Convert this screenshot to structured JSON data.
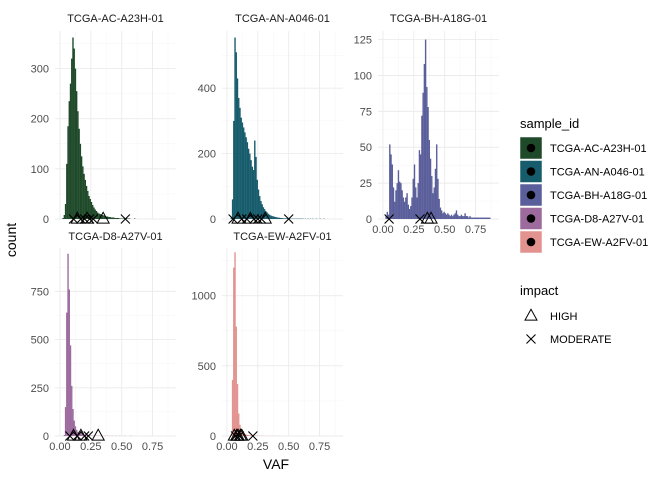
{
  "chart_data": {
    "type": "histogram",
    "facet_layout": "3 columns, free y scales",
    "xlabel": "VAF",
    "ylabel": "count",
    "x_ticks": [
      0.0,
      0.25,
      0.5,
      0.75
    ],
    "x_tick_labels": [
      "0.00",
      "0.25",
      "0.50",
      "0.75"
    ],
    "xlim": [
      -0.04,
      0.94
    ],
    "grid": true,
    "legend_position": "right",
    "legends": [
      {
        "title": "sample_id",
        "entries": [
          {
            "label": "TCGA-AC-A23H-01",
            "color": "#1f4a2a"
          },
          {
            "label": "TCGA-AN-A046-01",
            "color": "#175c6c"
          },
          {
            "label": "TCGA-BH-A18G-01",
            "color": "#5a5e9a"
          },
          {
            "label": "TCGA-D8-A27V-01",
            "color": "#9d6a9e"
          },
          {
            "label": "TCGA-EW-A2FV-01",
            "color": "#e3938f"
          }
        ]
      },
      {
        "title": "impact",
        "entries": [
          {
            "label": "HIGH",
            "shape": "triangle"
          },
          {
            "label": "MODERATE",
            "shape": "cross"
          }
        ]
      }
    ],
    "facets": [
      {
        "sample_id": "TCGA-AC-A23H-01",
        "color": "#1f4a2a",
        "y_ticks": [
          0,
          100,
          200,
          300
        ],
        "ylim": [
          0,
          375
        ],
        "histogram": {
          "bin_start": 0.0,
          "bin_width": 0.01,
          "counts": [
            0,
            0,
            2,
            8,
            30,
            110,
            185,
            235,
            270,
            320,
            362,
            340,
            300,
            255,
            215,
            180,
            150,
            125,
            105,
            90,
            78,
            66,
            56,
            46,
            40,
            34,
            28,
            23,
            19,
            16,
            13,
            11,
            10,
            9,
            8,
            7,
            6,
            5,
            5,
            4,
            4,
            3,
            3,
            3,
            2,
            2,
            2,
            2,
            1,
            1,
            1,
            1,
            1,
            1,
            1,
            1,
            1,
            0,
            0,
            0,
            1,
            0,
            0,
            0,
            0,
            0,
            0,
            0,
            0,
            0,
            0,
            0,
            0,
            0,
            0,
            0,
            0,
            0,
            0,
            0,
            0,
            0,
            0,
            0,
            0,
            0,
            0,
            0,
            0,
            0
          ]
        },
        "variants": [
          {
            "vaf": 0.11,
            "impact": "MODERATE"
          },
          {
            "vaf": 0.14,
            "impact": "HIGH"
          },
          {
            "vaf": 0.17,
            "impact": "MODERATE"
          },
          {
            "vaf": 0.2,
            "impact": "MODERATE"
          },
          {
            "vaf": 0.22,
            "impact": "HIGH"
          },
          {
            "vaf": 0.24,
            "impact": "MODERATE"
          },
          {
            "vaf": 0.27,
            "impact": "MODERATE"
          },
          {
            "vaf": 0.35,
            "impact": "HIGH"
          },
          {
            "vaf": 0.53,
            "impact": "MODERATE"
          }
        ]
      },
      {
        "sample_id": "TCGA-AN-A046-01",
        "color": "#175c6c",
        "y_ticks": [
          0,
          200,
          400
        ],
        "ylim": [
          0,
          575
        ],
        "histogram": {
          "bin_start": 0.0,
          "bin_width": 0.01,
          "counts": [
            0,
            0,
            0,
            5,
            60,
            300,
            555,
            510,
            430,
            370,
            340,
            310,
            295,
            280,
            265,
            250,
            235,
            215,
            200,
            180,
            160,
            150,
            240,
            190,
            120,
            90,
            70,
            55,
            45,
            36,
            30,
            24,
            20,
            16,
            13,
            11,
            9,
            8,
            7,
            6,
            5,
            4,
            4,
            3,
            3,
            2,
            2,
            2,
            2,
            1,
            1,
            1,
            1,
            1,
            1,
            1,
            1,
            1,
            1,
            1,
            1,
            1,
            0,
            1,
            0,
            1,
            0,
            1,
            0,
            1,
            0,
            0,
            1,
            0,
            0,
            1,
            0,
            0,
            1,
            0,
            0,
            0,
            0,
            0,
            0,
            0,
            0,
            0,
            0,
            0
          ]
        },
        "variants": [
          {
            "vaf": 0.05,
            "impact": "MODERATE"
          },
          {
            "vaf": 0.09,
            "impact": "HIGH"
          },
          {
            "vaf": 0.12,
            "impact": "MODERATE"
          },
          {
            "vaf": 0.16,
            "impact": "MODERATE"
          },
          {
            "vaf": 0.19,
            "impact": "HIGH"
          },
          {
            "vaf": 0.22,
            "impact": "MODERATE"
          },
          {
            "vaf": 0.25,
            "impact": "MODERATE"
          },
          {
            "vaf": 0.28,
            "impact": "MODERATE"
          },
          {
            "vaf": 0.31,
            "impact": "HIGH"
          },
          {
            "vaf": 0.5,
            "impact": "MODERATE"
          }
        ]
      },
      {
        "sample_id": "TCGA-BH-A18G-01",
        "color": "#5a5e9a",
        "y_ticks": [
          0,
          25,
          50,
          75,
          100,
          125
        ],
        "ylim": [
          0,
          131
        ],
        "histogram": {
          "bin_start": 0.0,
          "bin_width": 0.01,
          "counts": [
            0,
            0,
            2,
            5,
            3,
            52,
            45,
            38,
            22,
            12,
            20,
            25,
            34,
            26,
            25,
            20,
            15,
            12,
            15,
            18,
            10,
            7,
            9,
            15,
            28,
            38,
            22,
            15,
            25,
            48,
            45,
            72,
            88,
            108,
            125,
            92,
            78,
            55,
            42,
            30,
            18,
            22,
            35,
            52,
            28,
            14,
            8,
            6,
            4,
            5,
            4,
            3,
            4,
            3,
            2,
            3,
            2,
            3,
            4,
            6,
            3,
            2,
            2,
            3,
            2,
            2,
            4,
            2,
            2,
            1,
            2,
            1,
            1,
            1,
            1,
            1,
            1,
            1,
            1,
            1,
            1,
            1,
            1,
            1,
            1,
            1,
            1,
            0,
            0,
            0
          ]
        },
        "variants": [
          {
            "vaf": 0.05,
            "impact": "MODERATE"
          },
          {
            "vaf": 0.3,
            "impact": "MODERATE"
          },
          {
            "vaf": 0.36,
            "impact": "HIGH"
          },
          {
            "vaf": 0.39,
            "impact": "HIGH"
          }
        ]
      },
      {
        "sample_id": "TCGA-D8-A27V-01",
        "color": "#9d6a9e",
        "y_ticks": [
          0,
          250,
          500,
          750
        ],
        "ylim": [
          0,
          975
        ],
        "histogram": {
          "bin_start": 0.0,
          "bin_width": 0.01,
          "counts": [
            0,
            0,
            0,
            5,
            150,
            640,
            945,
            760,
            470,
            260,
            140,
            80,
            50,
            32,
            22,
            16,
            12,
            9,
            7,
            5,
            4,
            3,
            3,
            2,
            2,
            2,
            1,
            1,
            1,
            1,
            1,
            1,
            1,
            1,
            1,
            0,
            1,
            0,
            1,
            0,
            1,
            0,
            1,
            0,
            0,
            1,
            0,
            0,
            1,
            0,
            0,
            0,
            1,
            0,
            0,
            0,
            0,
            1,
            0,
            0,
            0,
            0,
            0,
            0,
            0,
            0,
            0,
            0,
            0,
            0,
            0,
            0,
            0,
            0,
            0,
            0,
            0,
            0,
            0,
            0,
            0,
            0,
            0,
            0,
            0,
            0,
            0,
            0,
            0,
            0
          ]
        },
        "variants": [
          {
            "vaf": 0.08,
            "impact": "MODERATE"
          },
          {
            "vaf": 0.11,
            "impact": "HIGH"
          },
          {
            "vaf": 0.14,
            "impact": "MODERATE"
          },
          {
            "vaf": 0.17,
            "impact": "HIGH"
          },
          {
            "vaf": 0.2,
            "impact": "MODERATE"
          },
          {
            "vaf": 0.23,
            "impact": "MODERATE"
          },
          {
            "vaf": 0.31,
            "impact": "HIGH"
          }
        ]
      },
      {
        "sample_id": "TCGA-EW-A2FV-01",
        "color": "#e3938f",
        "y_ticks": [
          0,
          500,
          1000
        ],
        "ylim": [
          0,
          1340
        ],
        "histogram": {
          "bin_start": 0.0,
          "bin_width": 0.01,
          "counts": [
            0,
            0,
            0,
            10,
            400,
            1200,
            1310,
            780,
            370,
            160,
            80,
            45,
            30,
            20,
            14,
            10,
            8,
            6,
            5,
            4,
            3,
            3,
            2,
            2,
            2,
            1,
            1,
            1,
            1,
            1,
            1,
            0,
            1,
            0,
            1,
            0,
            1,
            0,
            0,
            1,
            0,
            0,
            1,
            0,
            0,
            0,
            0,
            0,
            0,
            0,
            0,
            0,
            0,
            0,
            0,
            0,
            0,
            0,
            0,
            0,
            0,
            0,
            0,
            0,
            0,
            0,
            0,
            0,
            0,
            0,
            0,
            0,
            0,
            0,
            0,
            0,
            0,
            0,
            0,
            0,
            0,
            0,
            0,
            0,
            0,
            0,
            0,
            0,
            0,
            0
          ]
        },
        "variants": [
          {
            "vaf": 0.06,
            "impact": "HIGH"
          },
          {
            "vaf": 0.07,
            "impact": "MODERATE"
          },
          {
            "vaf": 0.08,
            "impact": "HIGH"
          },
          {
            "vaf": 0.09,
            "impact": "HIGH"
          },
          {
            "vaf": 0.1,
            "impact": "MODERATE"
          },
          {
            "vaf": 0.11,
            "impact": "HIGH"
          },
          {
            "vaf": 0.12,
            "impact": "HIGH"
          },
          {
            "vaf": 0.21,
            "impact": "MODERATE"
          }
        ]
      }
    ]
  }
}
